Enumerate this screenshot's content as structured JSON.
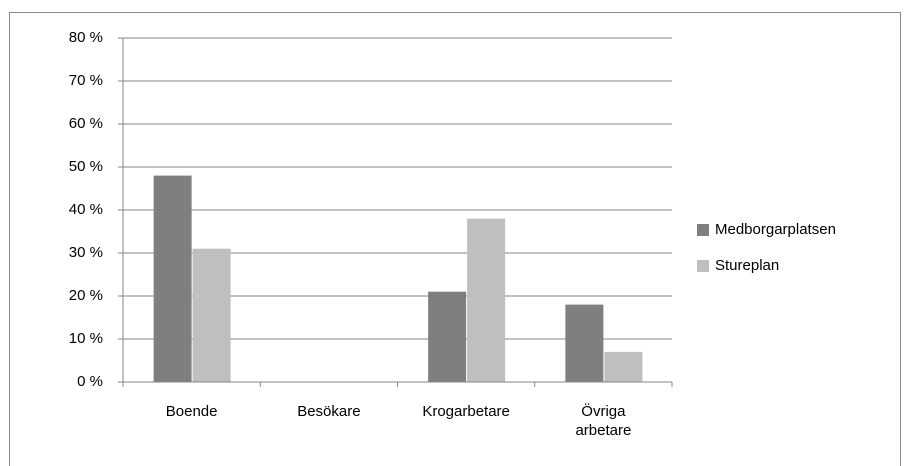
{
  "chart_data": {
    "type": "bar",
    "categories": [
      "Boende",
      "Besökare",
      "Krogarbetare",
      "Övriga arbetare"
    ],
    "series": [
      {
        "name": "Medborgarplatsen",
        "color": "#7f7f7f",
        "values": [
          48,
          0,
          21,
          18
        ]
      },
      {
        "name": "Stureplan",
        "color": "#bfbfbf",
        "values": [
          31,
          0,
          38,
          7
        ]
      }
    ],
    "ylim": [
      0,
      80
    ],
    "yticks": [
      {
        "value": 0,
        "label": "0 %"
      },
      {
        "value": 10,
        "label": "10 %"
      },
      {
        "value": 20,
        "label": "20 %"
      },
      {
        "value": 30,
        "label": "30 %"
      },
      {
        "value": 40,
        "label": "40 %"
      },
      {
        "value": 50,
        "label": "50 %"
      },
      {
        "value": 60,
        "label": "60 %"
      },
      {
        "value": 70,
        "label": "70 %"
      },
      {
        "value": 80,
        "label": "80 %"
      }
    ],
    "grid": true,
    "legend": "right"
  }
}
